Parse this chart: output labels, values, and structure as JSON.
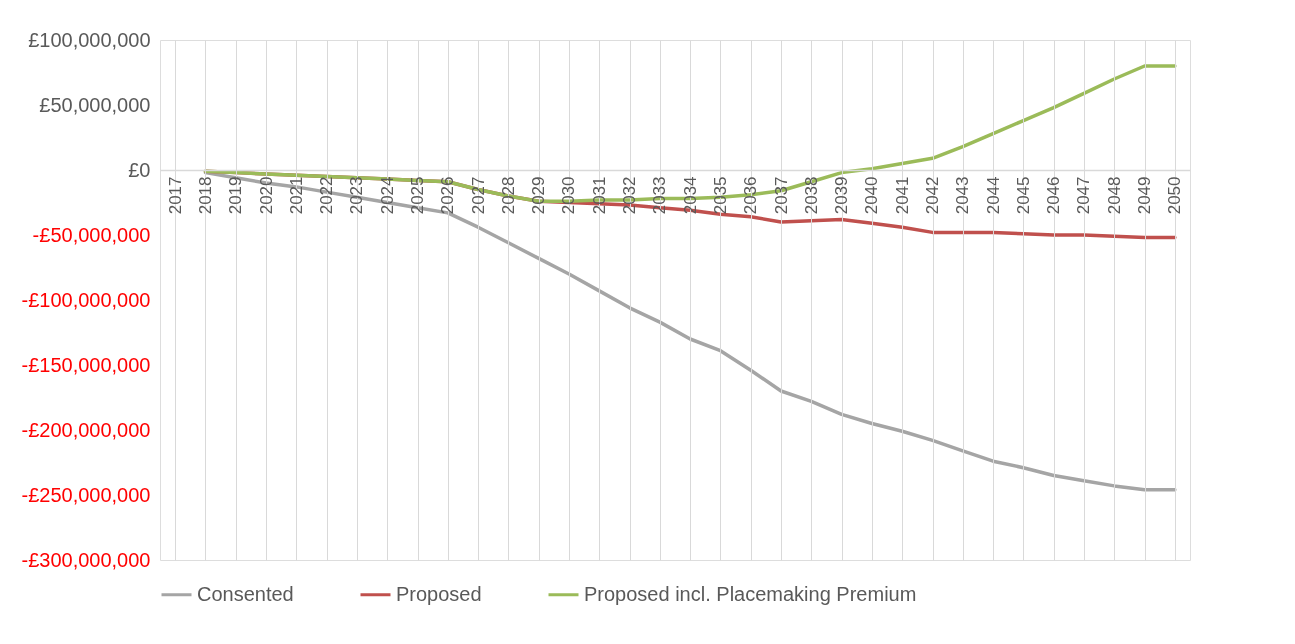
{
  "chart_data": {
    "type": "line",
    "categories": [
      "2017",
      "2018",
      "2019",
      "2020",
      "2021",
      "2022",
      "2023",
      "2024",
      "2025",
      "2026",
      "2027",
      "2028",
      "2029",
      "2030",
      "2031",
      "2032",
      "2033",
      "2034",
      "2035",
      "2036",
      "2037",
      "2038",
      "2039",
      "2040",
      "2041",
      "2042",
      "2043",
      "2044",
      "2045",
      "2046",
      "2047",
      "2048",
      "2049",
      "2050"
    ],
    "series": [
      {
        "name": "Consented",
        "color": "#a5a5a5",
        "values": [
          null,
          -2000000,
          -6000000,
          -10000000,
          -13000000,
          -17000000,
          -21000000,
          -25000000,
          -29000000,
          -33000000,
          -44000000,
          -56000000,
          -68000000,
          -80000000,
          -93000000,
          -106000000,
          -117000000,
          -130000000,
          -139000000,
          -154000000,
          -170000000,
          -178000000,
          -188000000,
          -195000000,
          -201000000,
          -208000000,
          -216000000,
          -224000000,
          -229000000,
          -235000000,
          -239000000,
          -243000000,
          -246000000,
          -246000000
        ]
      },
      {
        "name": "Proposed",
        "color": "#c0504d",
        "values": [
          null,
          -1000000,
          -2000000,
          -3000000,
          -4000000,
          -5000000,
          -6000000,
          -7000000,
          -8000000,
          -9000000,
          -15000000,
          -20000000,
          -24000000,
          -25000000,
          -26000000,
          -27000000,
          -29000000,
          -31000000,
          -34000000,
          -36000000,
          -40000000,
          -39000000,
          -38000000,
          -41000000,
          -44000000,
          -48000000,
          -48000000,
          -48000000,
          -49000000,
          -50000000,
          -50000000,
          -51000000,
          -52000000,
          -52000000
        ]
      },
      {
        "name": "Proposed incl. Placemaking Premium",
        "color": "#9bbb59",
        "values": [
          null,
          -1000000,
          -2000000,
          -3000000,
          -4000000,
          -5000000,
          -6000000,
          -7000000,
          -8000000,
          -9000000,
          -15000000,
          -20000000,
          -24000000,
          -24000000,
          -23000000,
          -23000000,
          -22000000,
          -22000000,
          -21000000,
          -19000000,
          -16000000,
          -9000000,
          -2000000,
          1000000,
          5000000,
          9000000,
          18000000,
          28000000,
          38000000,
          48000000,
          59000000,
          70000000,
          80000000,
          80000000
        ]
      }
    ],
    "ylim": [
      -300000000,
      100000000
    ],
    "yticks": [
      {
        "value": 100000000,
        "label": "£100,000,000"
      },
      {
        "value": 50000000,
        "label": "£50,000,000"
      },
      {
        "value": 0,
        "label": "£0"
      },
      {
        "value": -50000000,
        "label": "-£50,000,000"
      },
      {
        "value": -100000000,
        "label": "-£100,000,000"
      },
      {
        "value": -150000000,
        "label": "-£150,000,000"
      },
      {
        "value": -200000000,
        "label": "-£200,000,000"
      },
      {
        "value": -250000000,
        "label": "-£250,000,000"
      },
      {
        "value": -300000000,
        "label": "-£300,000,000"
      }
    ],
    "grid": "x",
    "legend": "bottom",
    "marker": "none",
    "line_style": "solid"
  }
}
